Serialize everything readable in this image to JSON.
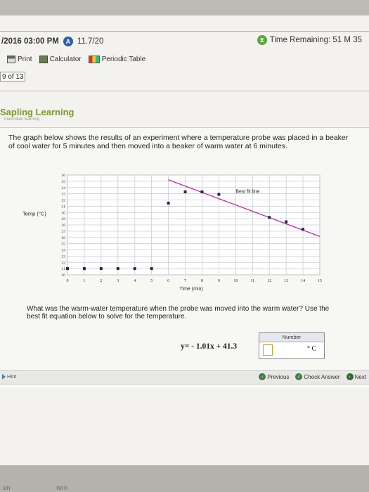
{
  "header": {
    "datetime": "/2016 03:00 PM",
    "version_badge": "A",
    "version": "11.7/20",
    "timer_label": "Time Remaining: 51 M 35"
  },
  "toolbar": {
    "print": "Print",
    "calculator": "Calculator",
    "periodic_table": "Periodic Table"
  },
  "question_count": "9 of 13",
  "brand": {
    "name": "Sapling Learning",
    "tagline": "macmillan learning"
  },
  "question": {
    "prompt": "The graph below shows the results of an experiment where a temperature probe was placed in a beaker of cool water for 5 minutes and then moved into a beaker of warm water at 6 minutes.",
    "ask": "What was the warm-water temperature when the probe was moved into the warm water? Use the best fit equation below to solve for the temperature.",
    "equation": "y= - 1.01x + 41.3",
    "number_label": "Number",
    "answer_value": "",
    "unit": "° C"
  },
  "chart_data": {
    "type": "scatter",
    "ylabel": "Temp (°C)",
    "xlabel": "Time (min)",
    "xlim": [
      0,
      15
    ],
    "ylim": [
      20,
      36
    ],
    "x_ticks": [
      0,
      1,
      2,
      3,
      4,
      5,
      6,
      7,
      8,
      9,
      10,
      11,
      12,
      13,
      14,
      15
    ],
    "y_ticks": [
      20,
      21,
      22,
      23,
      24,
      25,
      26,
      27,
      28,
      29,
      30,
      31,
      32,
      33,
      34,
      35,
      36
    ],
    "grid": true,
    "points": [
      {
        "x": 0,
        "y": 21
      },
      {
        "x": 1,
        "y": 21
      },
      {
        "x": 2,
        "y": 21
      },
      {
        "x": 3,
        "y": 21
      },
      {
        "x": 4,
        "y": 21
      },
      {
        "x": 5,
        "y": 21
      },
      {
        "x": 6,
        "y": 31.5
      },
      {
        "x": 7,
        "y": 33.3
      },
      {
        "x": 8,
        "y": 33.3
      },
      {
        "x": 9,
        "y": 32.9
      },
      {
        "x": 12,
        "y": 29.2
      },
      {
        "x": 13,
        "y": 28.5
      },
      {
        "x": 14,
        "y": 27.3
      }
    ],
    "series": [
      {
        "name": "Best fit line",
        "slope": -1.01,
        "intercept": 41.3,
        "x_range": [
          6,
          15
        ]
      }
    ],
    "annotation": "Best fit line",
    "point_color": "#1f2a4a",
    "line_color": "#cc22aa"
  },
  "nav": {
    "hint": "Hint",
    "previous": "Previous",
    "check": "Check Answer",
    "next": "Next"
  },
  "keyboard": {
    "left": "en",
    "right": "nnn"
  }
}
